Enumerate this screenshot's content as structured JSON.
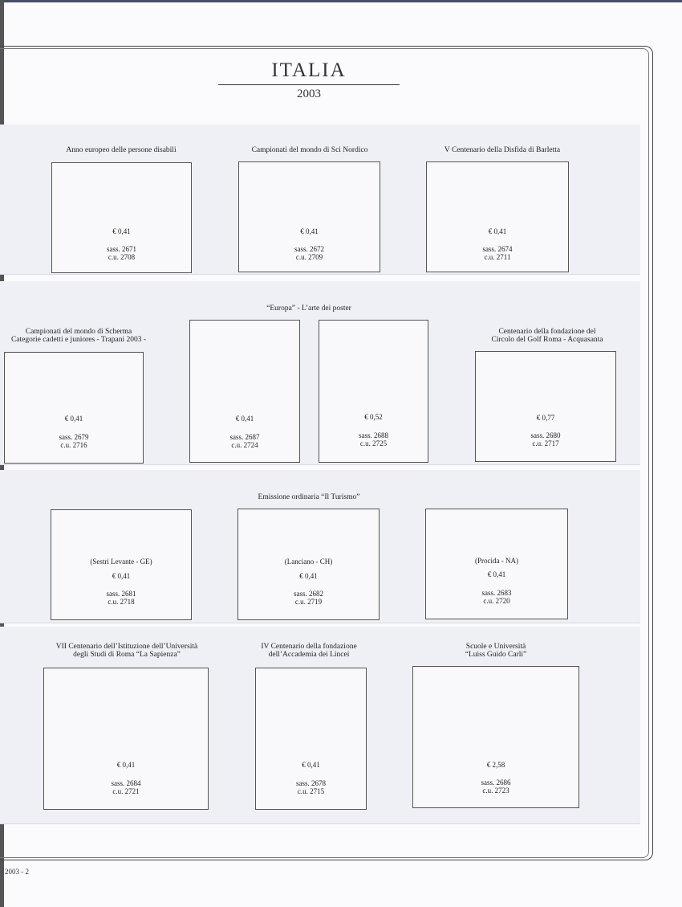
{
  "header": {
    "title": "ITALIA",
    "year": "2003"
  },
  "footer": {
    "page": "2003 - 2"
  },
  "rows": [
    {
      "caption": "",
      "stamps": [
        {
          "caption": [
            "Anno europeo delle persone disabili"
          ],
          "label": "",
          "value": "€ 0,41",
          "sass": "sass. 2671",
          "cu": "c.u.   2708"
        },
        {
          "caption": [
            "Campionati del mondo di Sci Nordico"
          ],
          "label": "",
          "value": "€ 0,41",
          "sass": "sass. 2672",
          "cu": "c.u.   2709"
        },
        {
          "caption": [
            "V Centenario della Disfida di Barletta"
          ],
          "label": "",
          "value": "€ 0,41",
          "sass": "sass. 2674",
          "cu": "c.u.   2711"
        }
      ]
    },
    {
      "caption": "“Europa” - L’arte dei poster",
      "stamps": [
        {
          "caption": [
            "Campionati del mondo di Scherma",
            "Categorie cadetti e juniores - Trapani 2003 -"
          ],
          "label": "",
          "value": "€ 0,41",
          "sass": "sass. 2679",
          "cu": "c.u.   2716"
        },
        {
          "caption": [],
          "label": "",
          "value": "€ 0,41",
          "sass": "sass. 2687",
          "cu": "c.u.   2724"
        },
        {
          "caption": [],
          "label": "",
          "value": "€ 0,52",
          "sass": "sass. 2688",
          "cu": "c.u.   2725"
        },
        {
          "caption": [
            "Centenario della fondazione del",
            "Circolo del Golf Roma - Acquasanta"
          ],
          "label": "",
          "value": "€ 0,77",
          "sass": "sass. 2680",
          "cu": "c.u.   2717"
        }
      ]
    },
    {
      "caption": "Emissione ordinaria “Il Turismo”",
      "stamps": [
        {
          "caption": [],
          "label": "(Sestri Levante - GE)",
          "value": "€ 0,41",
          "sass": "sass. 2681",
          "cu": "c.u.   2718"
        },
        {
          "caption": [],
          "label": "(Lanciano - CH)",
          "value": "€ 0,41",
          "sass": "sass. 2682",
          "cu": "c.u.   2719"
        },
        {
          "caption": [],
          "label": "(Procida - NA)",
          "value": "€ 0,41",
          "sass": "sass. 2683",
          "cu": "c.u.   2720"
        }
      ]
    },
    {
      "caption": "",
      "stamps": [
        {
          "caption": [
            "VII Centenario dell’Istituzione dell’Università",
            "degli Studi di Roma “La Sapienza”"
          ],
          "label": "",
          "value": "€ 0,41",
          "sass": "sass. 2684",
          "cu": "c.u.   2721"
        },
        {
          "caption": [
            "IV Centenario  della fondazione",
            "dell’Accademia dei Lincei"
          ],
          "label": "",
          "value": "€ 0,41",
          "sass": "sass. 2678",
          "cu": "c.u.   2715"
        },
        {
          "caption": [
            "Scuole e Università",
            "“Luiss Guido Carli”"
          ],
          "label": "",
          "value": "€ 2,58",
          "sass": "sass. 2686",
          "cu": "c.u.   2723"
        }
      ]
    }
  ]
}
